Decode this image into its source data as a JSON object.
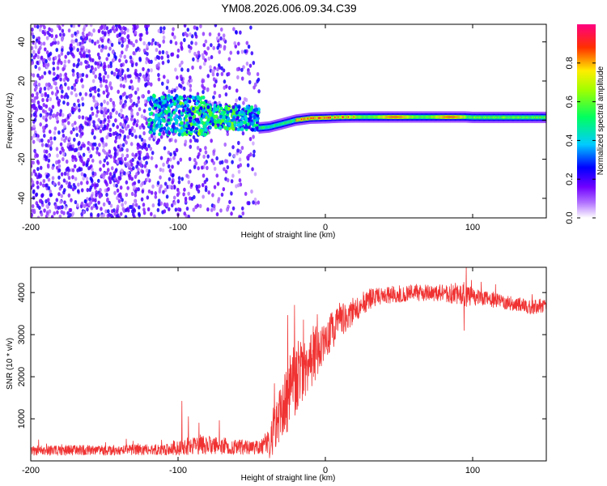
{
  "figure_title": "YM08.2026.006.09.34.C39",
  "chart_data": [
    {
      "type": "heatmap",
      "title": "YM08.2026.006.09.34.C39",
      "xlabel": "Height of straight line (km)",
      "ylabel": "Frequency (Hz)",
      "xlim": [
        -200,
        150
      ],
      "ylim": [
        -50,
        49
      ],
      "xticks": [
        -200,
        -100,
        0,
        100
      ],
      "yticks": [
        -40,
        -20,
        0,
        20,
        40
      ],
      "xtick_labels": [
        "-200",
        "-100",
        "0",
        "100"
      ],
      "ytick_labels": [
        "-40",
        "-20",
        "0",
        "20",
        "40"
      ],
      "colorbar": {
        "label": "Normalized spectral amplitude",
        "range": [
          0,
          1
        ],
        "ticks": [
          0.0,
          0.2,
          0.4,
          0.6,
          0.8
        ],
        "tick_labels": [
          "0.0",
          "0.2",
          "0.4",
          "0.6",
          "0.8"
        ],
        "colors": [
          "#ffffff",
          "#8000ff",
          "#0000ff",
          "#00ffff",
          "#00ff00",
          "#ffff00",
          "#ff0000",
          "#ff0080"
        ]
      },
      "regions": [
        {
          "name": "noise",
          "x_range": [
            -200,
            -45
          ],
          "amplitude": [
            0.05,
            0.25
          ]
        },
        {
          "name": "transition",
          "x_range": [
            -120,
            -45
          ],
          "freq_hz": [
            -5,
            15
          ],
          "amplitude": [
            0.2,
            0.6
          ]
        },
        {
          "name": "carrier",
          "track_x": [
            -45,
            -38,
            -30,
            -20,
            -10,
            0,
            10,
            20,
            50,
            95,
            100,
            150
          ],
          "track_freq_hz": [
            -4,
            -3.5,
            -2,
            0,
            1,
            1.2,
            1.5,
            1.6,
            1.6,
            1.6,
            1.4,
            1.4
          ],
          "peak_amplitude": 0.95
        }
      ]
    },
    {
      "type": "line",
      "title": "",
      "xlabel": "Height of straight line (km)",
      "ylabel": "SNR (10 * v/v)",
      "xlim": [
        -200,
        150
      ],
      "ylim": [
        0,
        4600
      ],
      "xticks": [
        -200,
        -100,
        0,
        100
      ],
      "yticks": [
        1000,
        2000,
        3000,
        4000
      ],
      "xtick_labels": [
        "-200",
        "-100",
        "0",
        "100"
      ],
      "ytick_labels": [
        "1000",
        "2000",
        "3000",
        "4000"
      ],
      "series": [
        {
          "name": "SNR",
          "color": "#f03232",
          "x": [
            -200,
            -150,
            -110,
            -100,
            -80,
            -60,
            -45,
            -38,
            -30,
            -25,
            -20,
            -10,
            0,
            10,
            20,
            30,
            40,
            60,
            80,
            95,
            100,
            120,
            140,
            150
          ],
          "y": [
            250,
            250,
            270,
            330,
            380,
            330,
            300,
            450,
            1100,
            1600,
            1900,
            2400,
            2900,
            3300,
            3600,
            3850,
            3950,
            4000,
            4000,
            3950,
            3900,
            3800,
            3650,
            3700
          ],
          "noise_amplitude": [
            120,
            120,
            130,
            200,
            220,
            180,
            180,
            400,
            700,
            900,
            900,
            700,
            500,
            400,
            300,
            250,
            220,
            200,
            200,
            300,
            200,
            180,
            170,
            170
          ]
        }
      ],
      "spikes": [
        {
          "x": -97.5,
          "y": 1420
        },
        {
          "x": -93,
          "y": 1050
        },
        {
          "x": -72,
          "y": 960
        },
        {
          "x": -36,
          "y": 150
        },
        {
          "x": -21,
          "y": 3700
        },
        {
          "x": -15,
          "y": 3350
        },
        {
          "x": 95.5,
          "y": 4600
        },
        {
          "x": 94,
          "y": 3100
        }
      ]
    }
  ]
}
